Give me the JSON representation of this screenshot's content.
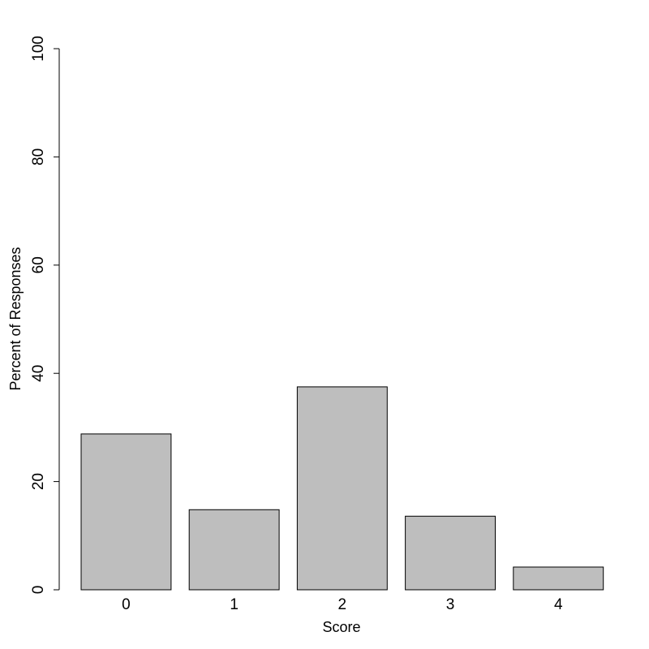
{
  "chart_data": {
    "type": "bar",
    "x_label": "Score",
    "y_label": "Percent of Responses",
    "categories": [
      "0",
      "1",
      "2",
      "3",
      "4"
    ],
    "values": [
      28.8,
      14.8,
      37.5,
      13.6,
      4.2
    ],
    "color": "#bebebe",
    "ylim": [
      0,
      100
    ],
    "yticks": [
      0,
      20,
      40,
      60,
      80,
      100
    ],
    "grid": false
  }
}
